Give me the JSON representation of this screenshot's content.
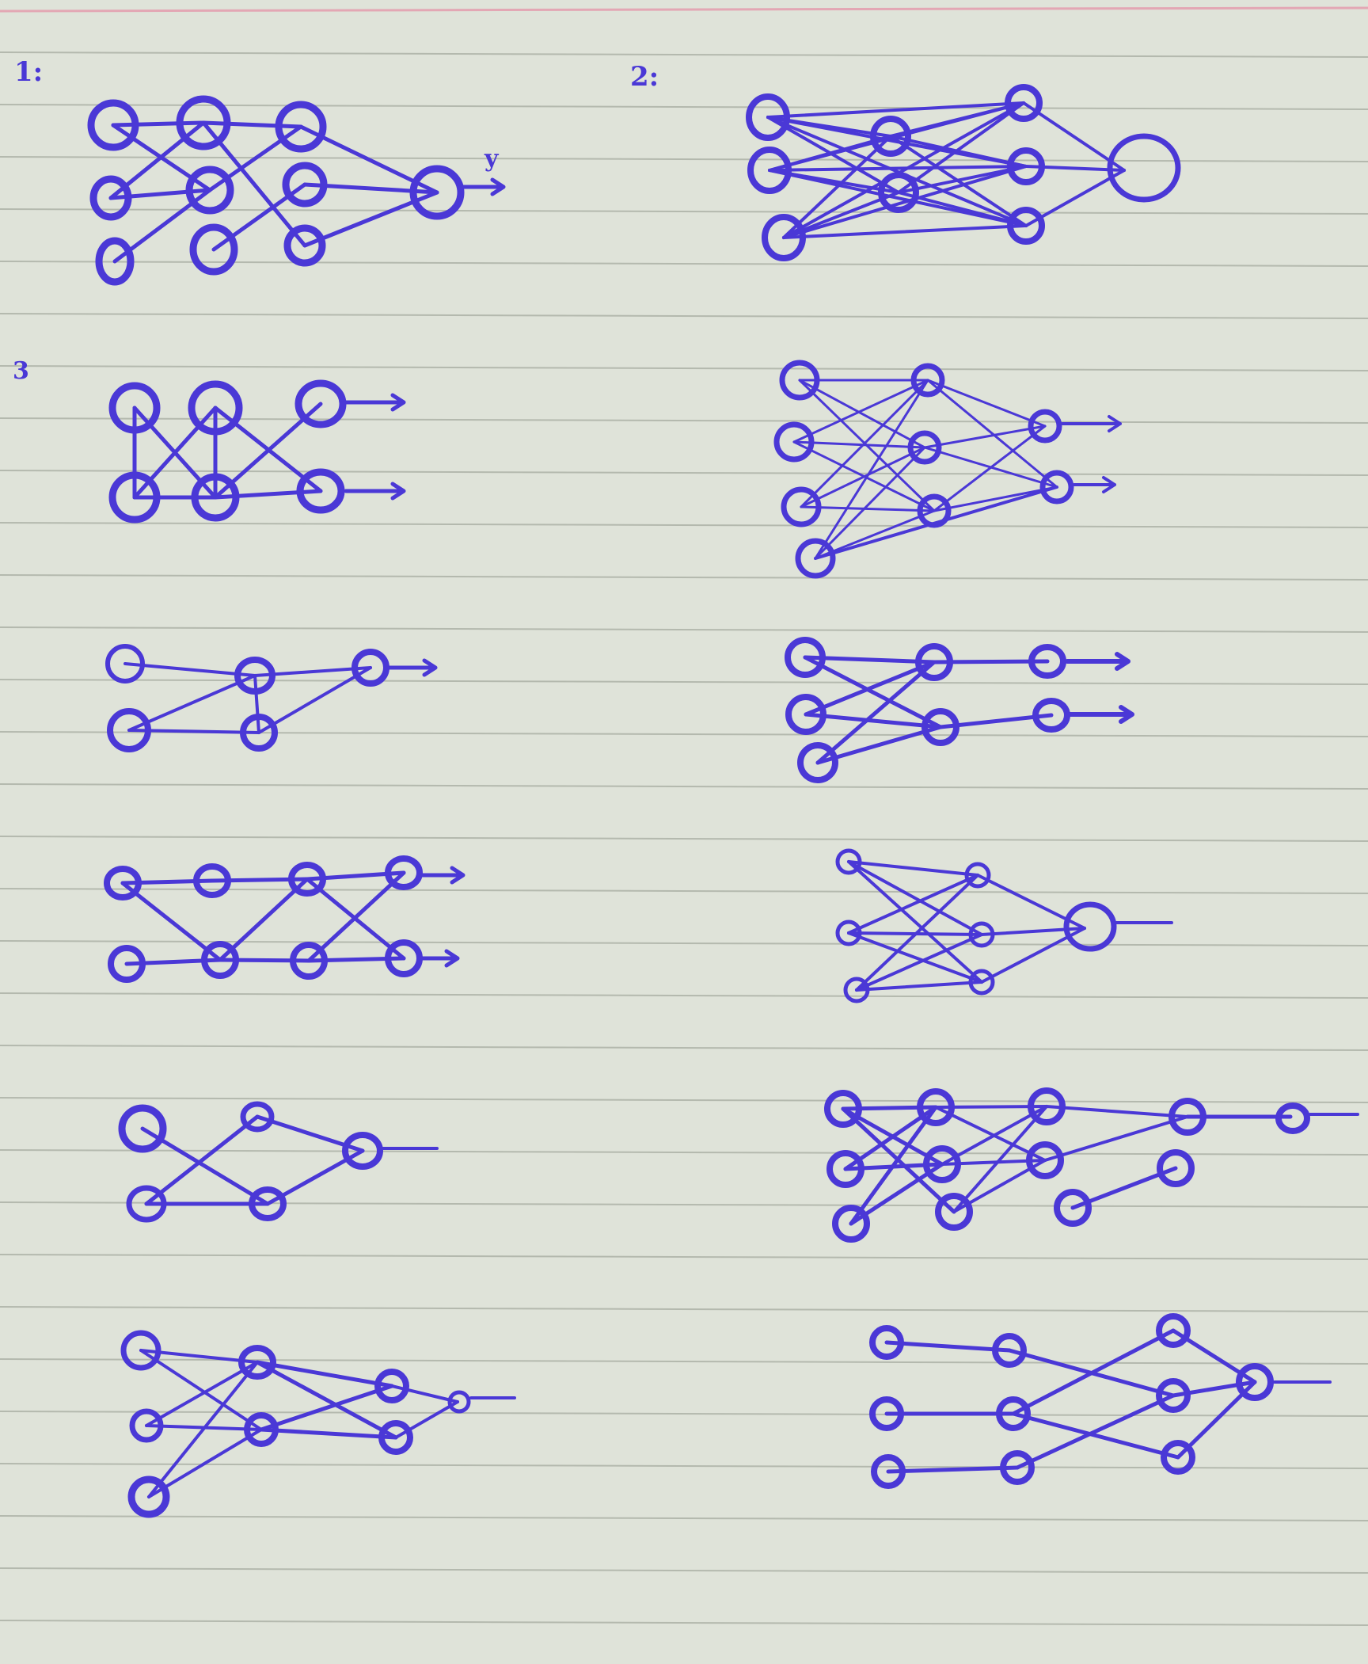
{
  "page": {
    "paper_color": "#dfe3d9",
    "rule_color": "#b4b9ae",
    "margin_rule_color": "#e3a7b4",
    "ink_color": "#4a38d6"
  },
  "labels": {
    "fig1": "1:",
    "fig2": "2:",
    "fig3": "3",
    "output_y": "y"
  }
}
